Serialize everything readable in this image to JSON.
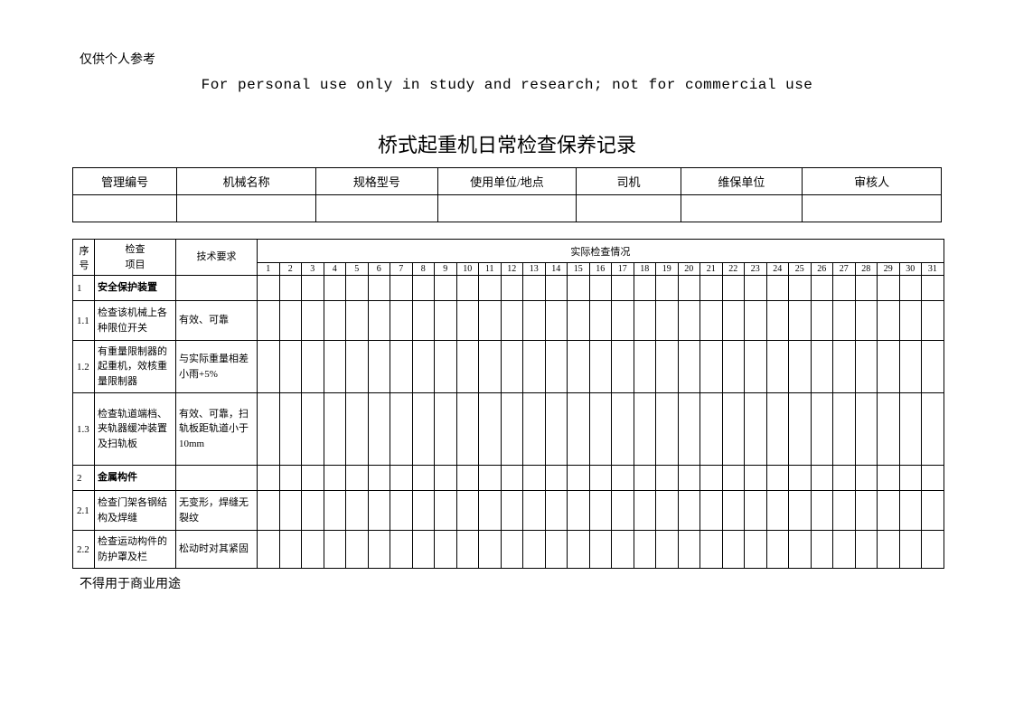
{
  "top_note": "仅供个人参考",
  "disclaimer": "For personal use only in study and research; not for commercial use",
  "main_title": "桥式起重机日常检查保养记录",
  "header": {
    "labels": [
      "管理编号",
      "机械名称",
      "规格型号",
      "使用单位/地点",
      "司机",
      "维保单位",
      "审核人"
    ],
    "values": [
      "",
      "",
      "",
      "",
      "",
      "",
      ""
    ]
  },
  "columns": {
    "seq": "序号",
    "item": "检查项目",
    "req": "技术要求",
    "status": "实际检查情况"
  },
  "days": [
    "1",
    "2",
    "3",
    "4",
    "5",
    "6",
    "7",
    "8",
    "9",
    "10",
    "11",
    "12",
    "13",
    "14",
    "15",
    "16",
    "17",
    "18",
    "19",
    "20",
    "21",
    "22",
    "23",
    "24",
    "25",
    "26",
    "27",
    "28",
    "29",
    "30",
    "31"
  ],
  "rows": [
    {
      "type": "section",
      "num": "1",
      "item": "安全保护装置",
      "req": ""
    },
    {
      "type": "item",
      "h": "row-h1",
      "num": "1.1",
      "item": "检查该机械上各种限位开关",
      "req": "有效、可靠"
    },
    {
      "type": "item",
      "h": "row-h2",
      "num": "1.2",
      "item": "有重量限制器的起重机，效核重量限制器",
      "req": "与实际重量相差小雨+5%"
    },
    {
      "type": "item",
      "h": "row-h3",
      "num": "1.3",
      "item": "检查轨道端档、夹轨器缓冲装置及扫轨板",
      "req": "有效、可靠，扫轨板距轨道小于10mm"
    },
    {
      "type": "section",
      "num": "2",
      "item": "金属构件",
      "req": ""
    },
    {
      "type": "item",
      "h": "row-h1",
      "num": "2.1",
      "item": "检查门架各钢结构及焊缝",
      "req": "无变形，焊缝无裂纹"
    },
    {
      "type": "item",
      "h": "row-short",
      "num": "2.2",
      "item": "检查运动构件的防护罩及栏",
      "req": "松动时对其紧固"
    }
  ],
  "footer_note": "不得用于商业用途",
  "style": {
    "page_bg": "#ffffff",
    "text_color": "#000000",
    "border_color": "#000000",
    "title_fontsize": 22,
    "body_fontsize": 11,
    "header_fontsize": 13,
    "note_fontsize": 14,
    "disclaimer_fontsize": 16,
    "disclaimer_font": "Courier New"
  }
}
